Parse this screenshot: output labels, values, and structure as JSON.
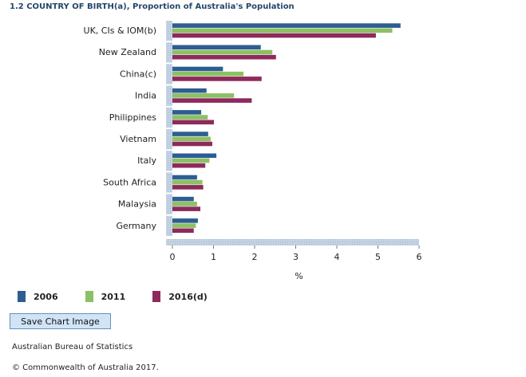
{
  "chart_data": {
    "type": "bar",
    "orientation": "horizontal",
    "title": "1.2 COUNTRY OF BIRTH(a), Proportion of Australia's Population",
    "categories": [
      "UK, CIs & IOM(b)",
      "New Zealand",
      "China(c)",
      "India",
      "Philippines",
      "Vietnam",
      "Italy",
      "South Africa",
      "Malaysia",
      "Germany"
    ],
    "series": [
      {
        "name": "2006",
        "color": "#2e5e91",
        "values": [
          5.55,
          2.15,
          1.23,
          0.83,
          0.7,
          0.87,
          1.07,
          0.6,
          0.52,
          0.62
        ]
      },
      {
        "name": "2011",
        "color": "#8cc065",
        "values": [
          5.35,
          2.43,
          1.73,
          1.5,
          0.86,
          0.93,
          0.9,
          0.73,
          0.6,
          0.57
        ]
      },
      {
        "name": "2016(d)",
        "color": "#8e2a5c",
        "values": [
          4.95,
          2.52,
          2.17,
          1.93,
          1.01,
          0.97,
          0.8,
          0.75,
          0.68,
          0.52
        ]
      }
    ],
    "xlabel": "%",
    "ylabel": "",
    "xlim": [
      0,
      6
    ],
    "xticks": [
      0,
      1,
      2,
      3,
      4,
      5,
      6
    ],
    "legend": "bottom-left"
  },
  "buttons": {
    "save_chart": "Save Chart Image"
  },
  "footer": {
    "source": "Australian Bureau of Statistics",
    "copyright": "© Commonwealth of Australia 2017."
  }
}
